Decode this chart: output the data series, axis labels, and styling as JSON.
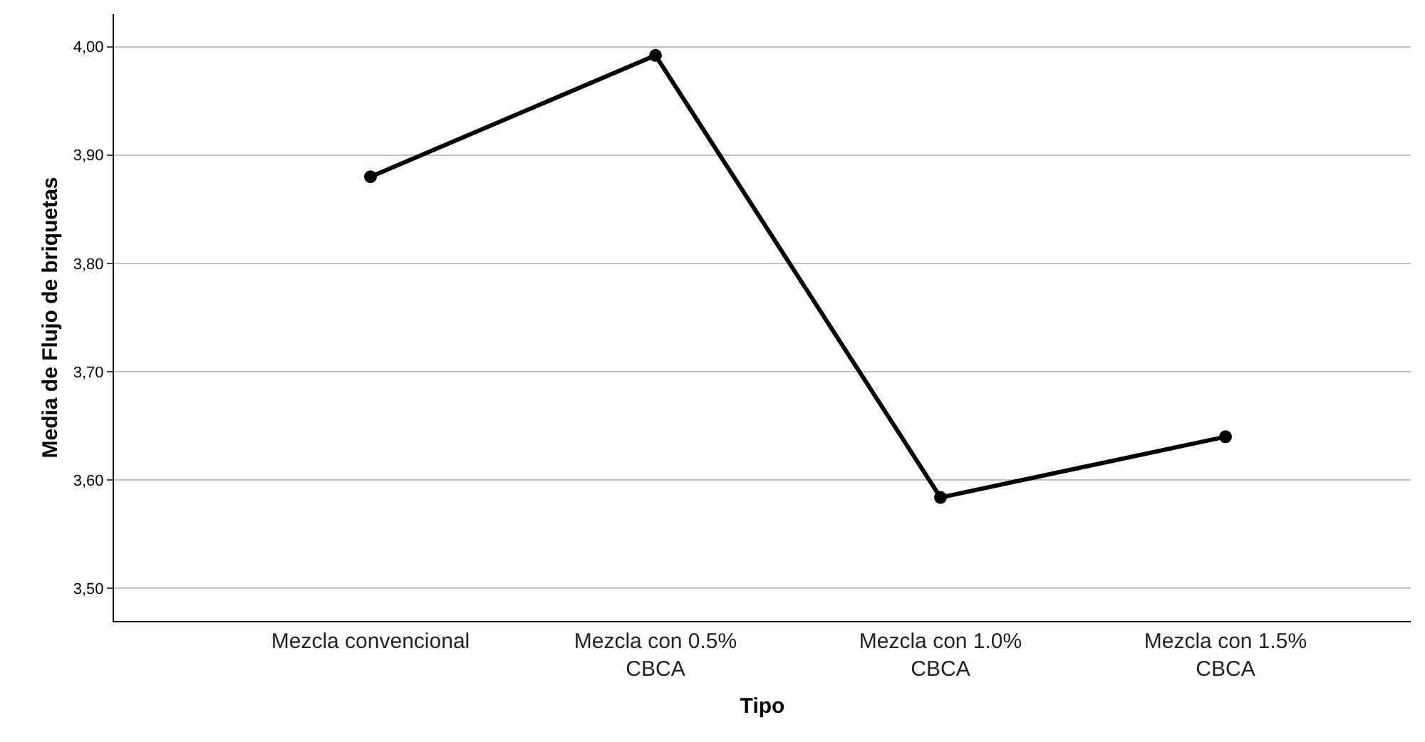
{
  "chart_data": {
    "type": "line",
    "xlabel": "Tipo",
    "ylabel": "Media de Flujo de briquetas",
    "categories": [
      "Mezcla convencional",
      "Mezcla con 0.5%\nCBCA",
      "Mezcla con 1.0%\nCBCA",
      "Mezcla con 1.5%\nCBCA"
    ],
    "series": [
      {
        "color": "#000000",
        "values": [
          3.88,
          3.992,
          3.584,
          3.64
        ]
      }
    ],
    "ylim": [
      3.47,
      4.03
    ],
    "yticks": [
      {
        "value": 3.5,
        "label": "3,50"
      },
      {
        "value": 3.6,
        "label": "3,60"
      },
      {
        "value": 3.7,
        "label": "3,70"
      },
      {
        "value": 3.8,
        "label": "3,80"
      },
      {
        "value": 3.9,
        "label": "3,90"
      },
      {
        "value": 4.0,
        "label": "4,00"
      }
    ],
    "grid": "y",
    "marker": "circle",
    "line_style": "solid"
  }
}
